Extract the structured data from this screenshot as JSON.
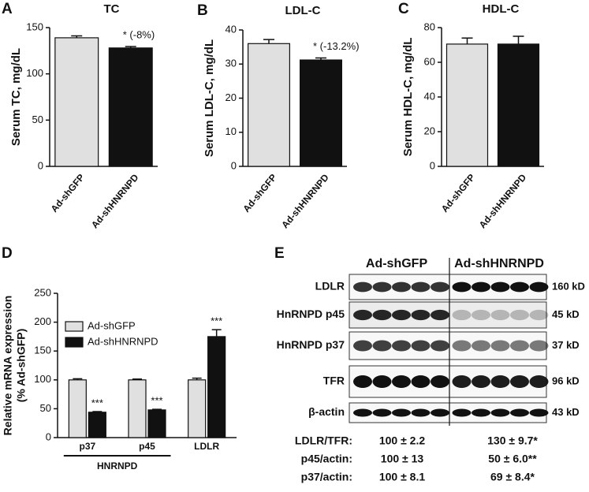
{
  "chart_data": [
    {
      "type": "bar",
      "panel": "A",
      "title": "TC",
      "ylabel": "Serum TC, mg/dL",
      "categories": [
        "Ad-shGFP",
        "Ad-shHNRNPD"
      ],
      "values": [
        139,
        128
      ],
      "errors": [
        2,
        1.5
      ],
      "colors": [
        "#e0e0e0",
        "#111111"
      ],
      "ylim": [
        0,
        150
      ],
      "yticks": [
        0,
        50,
        100,
        150
      ],
      "annotations": [
        "* (-8%)"
      ]
    },
    {
      "type": "bar",
      "panel": "B",
      "title": "LDL-C",
      "ylabel": "Serum LDL-C, mg/dL",
      "categories": [
        "Ad-shGFP",
        "Ad-shHNRNPD"
      ],
      "values": [
        36,
        31.2
      ],
      "errors": [
        1.2,
        0.6
      ],
      "colors": [
        "#e0e0e0",
        "#111111"
      ],
      "ylim": [
        0,
        40
      ],
      "yticks": [
        0,
        10,
        20,
        30,
        40
      ],
      "annotations": [
        "* (-13.2%)"
      ]
    },
    {
      "type": "bar",
      "panel": "C",
      "title": "HDL-C",
      "ylabel": "Serum HDL-C, mg/dL",
      "categories": [
        "Ad-shGFP",
        "Ad-shHNRNPD"
      ],
      "values": [
        70.5,
        70.5
      ],
      "errors": [
        3.5,
        4.5
      ],
      "colors": [
        "#e0e0e0",
        "#111111"
      ],
      "ylim": [
        0,
        80
      ],
      "yticks": [
        0,
        20,
        40,
        60,
        80
      ],
      "annotations": []
    },
    {
      "type": "grouped-bar",
      "panel": "D",
      "ylabel": [
        "Relative mRNA expression",
        "(% Ad-shGFP)"
      ],
      "categories": [
        "p37",
        "p45",
        "LDLR"
      ],
      "group_label": "HNRNPD",
      "legend": "upper left",
      "series": [
        {
          "name": "Ad-shGFP",
          "color": "#e0e0e0",
          "values": [
            100,
            100,
            100
          ],
          "errors": [
            2,
            1.5,
            3
          ]
        },
        {
          "name": "Ad-shHNRNPD",
          "color": "#111111",
          "values": [
            44,
            48,
            175
          ],
          "errors": [
            1,
            1,
            12
          ]
        }
      ],
      "ylim": [
        0,
        250
      ],
      "yticks": [
        0,
        50,
        100,
        150,
        200,
        250
      ],
      "annotations": [
        "***",
        "***",
        "***"
      ]
    }
  ],
  "blot": {
    "panel": "E",
    "groups": [
      "Ad-shGFP",
      "Ad-shHNRNPD"
    ],
    "rows": [
      {
        "label": "LDLR",
        "size": "160 kD"
      },
      {
        "label": "HnRNPD p45",
        "size": "45 kD"
      },
      {
        "label": "HnRNPD p37",
        "size": "37 kD"
      },
      {
        "label": "TFR",
        "size": "96 kD"
      },
      {
        "label": "β-actin",
        "size": "43 kD"
      }
    ],
    "quant": [
      {
        "label": "LDLR/TFR:",
        "values": [
          "100 ± 2.2",
          "130 ± 9.7*"
        ]
      },
      {
        "label": "p45/actin:",
        "values": [
          "100 ± 13",
          "50 ± 6.0**"
        ]
      },
      {
        "label": "p37/actin:",
        "values": [
          "100 ± 8.1",
          "69 ± 8.4*"
        ]
      }
    ]
  }
}
